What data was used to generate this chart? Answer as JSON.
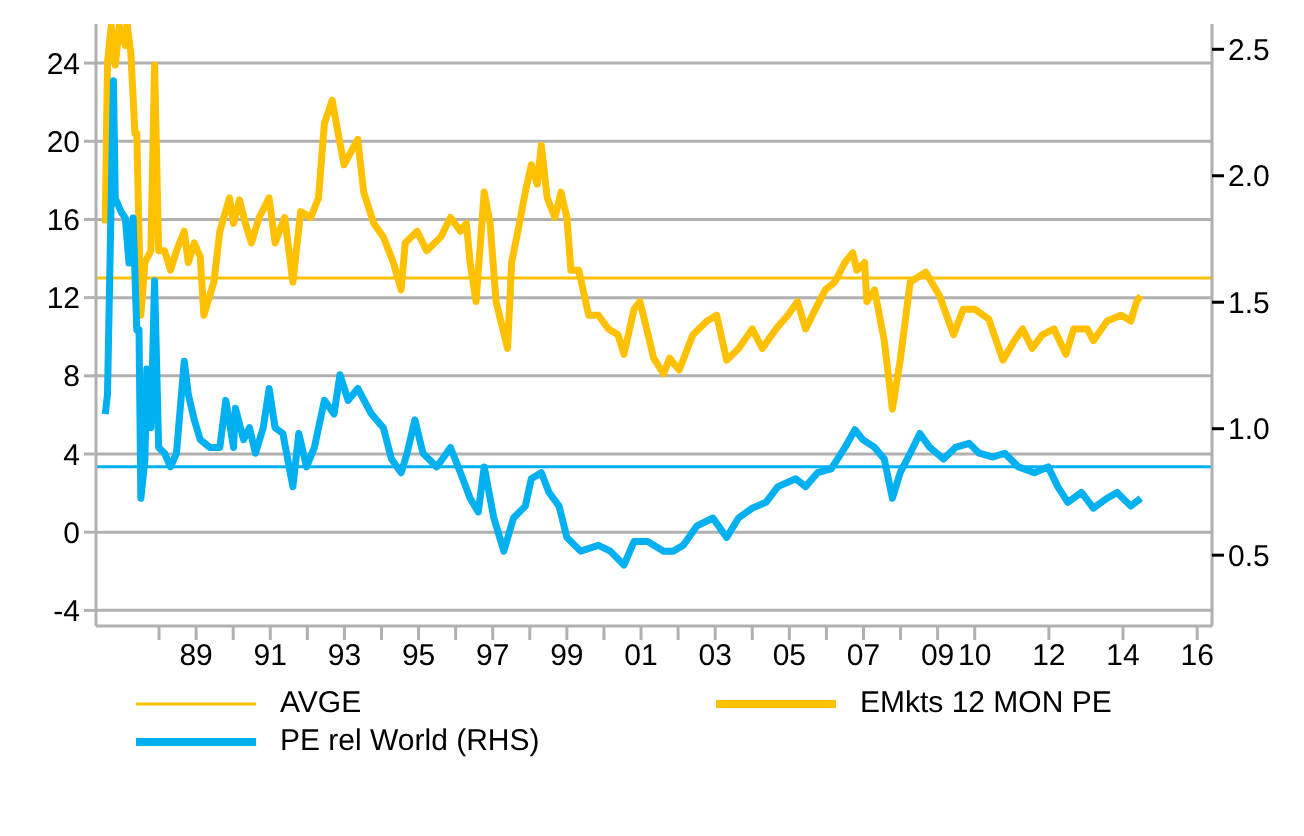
{
  "chart_data": {
    "type": "line",
    "ylim": [
      -4.8,
      26
    ],
    "yticks": [
      -4,
      0,
      4,
      8,
      12,
      16,
      20,
      24
    ],
    "y2lim": [
      0.22,
      2.6
    ],
    "y2ticks": [
      {
        "value": 0.5,
        "label": "0.5"
      },
      {
        "value": 1.0,
        "label": "1.0"
      },
      {
        "value": 1.5,
        "label": "1.5"
      },
      {
        "value": 2.0,
        "label": "2.0"
      },
      {
        "value": 2.5,
        "label": "2.5"
      }
    ],
    "xlim": [
      1986.3,
      2016.4
    ],
    "xticks": [
      {
        "value": 1988,
        "label": null
      },
      {
        "value": 1989,
        "label": "89"
      },
      {
        "value": 1990,
        "label": null
      },
      {
        "value": 1991,
        "label": "91"
      },
      {
        "value": 1992,
        "label": null
      },
      {
        "value": 1993,
        "label": "93"
      },
      {
        "value": 1994,
        "label": null
      },
      {
        "value": 1995,
        "label": "95"
      },
      {
        "value": 1996,
        "label": null
      },
      {
        "value": 1997,
        "label": "97"
      },
      {
        "value": 1998,
        "label": null
      },
      {
        "value": 1999,
        "label": "99"
      },
      {
        "value": 2000,
        "label": null
      },
      {
        "value": 2001,
        "label": "01"
      },
      {
        "value": 2002,
        "label": null
      },
      {
        "value": 2003,
        "label": "03"
      },
      {
        "value": 2004,
        "label": null
      },
      {
        "value": 2005,
        "label": "05"
      },
      {
        "value": 2006,
        "label": null
      },
      {
        "value": 2007,
        "label": "07"
      },
      {
        "value": 2008,
        "label": null
      },
      {
        "value": 2009,
        "label": "09"
      },
      {
        "value": 2010,
        "label": "10"
      },
      {
        "value": 2012,
        "label": "12"
      },
      {
        "value": 2014,
        "label": "14"
      },
      {
        "value": 2016,
        "label": "16"
      }
    ],
    "grid": "y",
    "legend": "bottom",
    "marker": "none",
    "line_style": "solid",
    "ref_lines": [
      {
        "axis": "y",
        "value": 13,
        "label": "AVGE",
        "color": "#ffc000"
      },
      {
        "axis": "y2",
        "value": 0.85,
        "label": null,
        "color": "#00b0f0"
      }
    ],
    "series": [
      {
        "name": "EMkts 12 MON PE",
        "color": "#ffc000",
        "x": [
          1986.55,
          1986.61,
          1986.71,
          1986.82,
          1986.93,
          1987.09,
          1987.14,
          1987.24,
          1987.35,
          1987.4,
          1987.51,
          1987.62,
          1987.78,
          1987.88,
          1987.99,
          1988.15,
          1988.31,
          1988.47,
          1988.68,
          1988.79,
          1988.95,
          1989.11,
          1989.21,
          1989.48,
          1989.64,
          1989.9,
          1990.01,
          1990.17,
          1990.33,
          1990.49,
          1990.7,
          1990.97,
          1991.13,
          1991.39,
          1991.61,
          1991.82,
          1992.09,
          1992.3,
          1992.46,
          1992.67,
          1992.83,
          1992.99,
          1993.36,
          1993.52,
          1993.79,
          1994.05,
          1994.32,
          1994.53,
          1994.64,
          1994.96,
          1995.22,
          1995.6,
          1995.86,
          1996.13,
          1996.29,
          1996.39,
          1996.55,
          1996.77,
          1996.93,
          1997.09,
          1997.4,
          1997.51,
          1997.72,
          1997.88,
          1998.04,
          1998.2,
          1998.31,
          1998.47,
          1998.68,
          1998.84,
          1999.0,
          1999.11,
          1999.32,
          1999.59,
          1999.85,
          2000.12,
          2000.38,
          2000.54,
          2000.81,
          2000.97,
          2001.23,
          2001.34,
          2001.61,
          2001.77,
          2002.03,
          2002.4,
          2002.78,
          2003.04,
          2003.31,
          2003.63,
          2004.0,
          2004.27,
          2004.64,
          2004.96,
          2005.22,
          2005.44,
          2005.7,
          2005.97,
          2006.23,
          2006.5,
          2006.71,
          2006.82,
          2007.03,
          2007.09,
          2007.3,
          2007.56,
          2007.78,
          2007.99,
          2008.26,
          2008.68,
          2009.05,
          2009.43,
          2009.69,
          2010.01,
          2010.38,
          2010.76,
          2011.07,
          2011.29,
          2011.55,
          2011.82,
          2012.14,
          2012.46,
          2012.67,
          2013.04,
          2013.2,
          2013.57,
          2013.95,
          2014.21,
          2014.37,
          2014.48
        ],
        "values": [
          15.8,
          24,
          25.9,
          23.9,
          25.9,
          24.9,
          26,
          24.5,
          20.4,
          20.4,
          11.1,
          13.8,
          14.4,
          23.9,
          14.4,
          14.4,
          13.4,
          14.4,
          15.4,
          13.8,
          14.8,
          14.1,
          11.1,
          12.8,
          15.4,
          17.1,
          15.8,
          17,
          15.8,
          14.8,
          16.1,
          17.1,
          14.8,
          16.1,
          12.8,
          16.4,
          16.1,
          17.1,
          20.9,
          22.1,
          20.4,
          18.8,
          20.1,
          17.4,
          15.8,
          15.1,
          13.8,
          12.4,
          14.8,
          15.4,
          14.4,
          15.1,
          16.1,
          15.4,
          15.8,
          13.8,
          11.8,
          17.4,
          15.8,
          11.8,
          9.4,
          13.8,
          15.8,
          17.4,
          18.8,
          17.8,
          19.8,
          17.1,
          16.1,
          17.4,
          16.1,
          13.4,
          13.4,
          11.1,
          11.1,
          10.4,
          10.1,
          9.1,
          11.4,
          11.8,
          9.8,
          8.9,
          8.1,
          8.9,
          8.3,
          10.1,
          10.8,
          11.1,
          8.8,
          9.4,
          10.4,
          9.4,
          10.4,
          11.1,
          11.8,
          10.4,
          11.4,
          12.4,
          12.8,
          13.8,
          14.3,
          13.4,
          13.8,
          11.8,
          12.4,
          9.8,
          6.3,
          8.8,
          12.8,
          13.3,
          12.1,
          10.1,
          11.4,
          11.4,
          10.9,
          8.8,
          9.8,
          10.4,
          9.4,
          10.1,
          10.4,
          9.1,
          10.4,
          10.4,
          9.8,
          10.8,
          11.1,
          10.8,
          11.8,
          12.1
        ]
      },
      {
        "name": "PE rel World (RHS)",
        "color": "#00b0f0",
        "axis": "y2",
        "x": [
          1986.55,
          1986.61,
          1986.66,
          1986.77,
          1986.82,
          1986.98,
          1987.09,
          1987.19,
          1987.3,
          1987.4,
          1987.46,
          1987.51,
          1987.62,
          1987.67,
          1987.78,
          1987.88,
          1987.99,
          1988.15,
          1988.31,
          1988.47,
          1988.68,
          1988.79,
          1988.95,
          1989.11,
          1989.37,
          1989.64,
          1989.8,
          1990.01,
          1990.06,
          1990.28,
          1990.44,
          1990.6,
          1990.81,
          1990.97,
          1991.13,
          1991.34,
          1991.61,
          1991.77,
          1991.98,
          1992.19,
          1992.46,
          1992.72,
          1992.88,
          1993.1,
          1993.36,
          1993.73,
          1994.05,
          1994.27,
          1994.53,
          1994.69,
          1994.9,
          1995.12,
          1995.49,
          1995.86,
          1996.13,
          1996.39,
          1996.61,
          1996.77,
          1997.03,
          1997.3,
          1997.56,
          1997.88,
          1998.04,
          1998.31,
          1998.52,
          1998.79,
          1999.0,
          1999.37,
          1999.85,
          2000.17,
          2000.54,
          2000.81,
          2001.18,
          2001.61,
          2001.87,
          2002.14,
          2002.51,
          2002.94,
          2003.31,
          2003.63,
          2004.0,
          2004.37,
          2004.69,
          2005.17,
          2005.44,
          2005.76,
          2006.13,
          2006.5,
          2006.77,
          2006.98,
          2007.3,
          2007.56,
          2007.78,
          2007.99,
          2008.26,
          2008.52,
          2008.79,
          2009.16,
          2009.48,
          2009.85,
          2010.12,
          2010.49,
          2010.81,
          2011.18,
          2011.61,
          2011.98,
          2012.24,
          2012.51,
          2012.88,
          2013.2,
          2013.57,
          2013.84,
          2014.21,
          2014.48
        ],
        "values": [
          1.058,
          1.136,
          1.523,
          2.376,
          1.911,
          1.857,
          1.833,
          1.655,
          1.833,
          1.391,
          1.391,
          0.725,
          0.88,
          1.236,
          1.004,
          1.585,
          0.926,
          0.903,
          0.849,
          0.903,
          1.267,
          1.136,
          1.035,
          0.957,
          0.926,
          0.926,
          1.112,
          0.926,
          1.081,
          0.957,
          1.004,
          0.903,
          1.004,
          1.159,
          1.004,
          0.981,
          0.771,
          0.981,
          0.849,
          0.926,
          1.112,
          1.058,
          1.213,
          1.112,
          1.159,
          1.058,
          1.004,
          0.88,
          0.826,
          0.903,
          1.035,
          0.903,
          0.849,
          0.926,
          0.826,
          0.725,
          0.671,
          0.849,
          0.647,
          0.516,
          0.647,
          0.694,
          0.802,
          0.826,
          0.748,
          0.694,
          0.57,
          0.516,
          0.539,
          0.516,
          0.461,
          0.554,
          0.554,
          0.516,
          0.516,
          0.539,
          0.616,
          0.647,
          0.57,
          0.647,
          0.686,
          0.709,
          0.771,
          0.802,
          0.771,
          0.826,
          0.841,
          0.926,
          0.996,
          0.957,
          0.926,
          0.88,
          0.725,
          0.826,
          0.903,
          0.981,
          0.926,
          0.88,
          0.926,
          0.942,
          0.903,
          0.888,
          0.903,
          0.849,
          0.826,
          0.849,
          0.771,
          0.709,
          0.748,
          0.686,
          0.725,
          0.748,
          0.694,
          0.725
        ]
      }
    ]
  }
}
